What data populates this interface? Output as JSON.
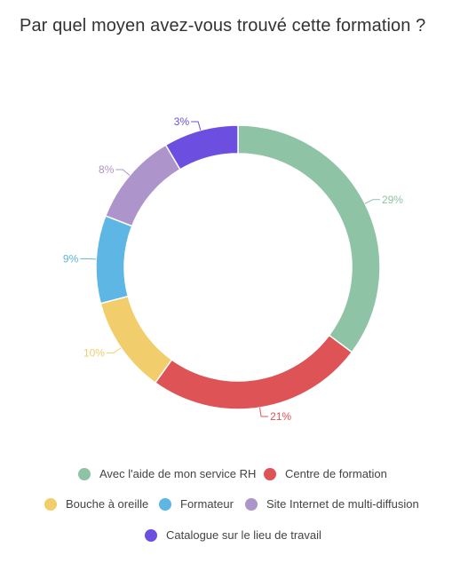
{
  "title": "Par quel moyen avez-vous trouvé cette formation ?",
  "chart_data": {
    "type": "pie",
    "title": "Par quel moyen avez-vous trouvé cette formation ?",
    "slices": [
      {
        "name": "Avec l'aide de mon service RH",
        "value": 29,
        "label": "29%",
        "color": "#8fc3a6"
      },
      {
        "name": "Centre de formation",
        "value": 21,
        "label": "21%",
        "color": "#de5356"
      },
      {
        "name": "Bouche à oreille",
        "value": 10,
        "label": "10%",
        "color": "#f1cd6b"
      },
      {
        "name": "Formateur",
        "value": 9,
        "label": "9%",
        "color": "#5db6e3"
      },
      {
        "name": "Site Internet de multi-diffusion",
        "value": 8,
        "label": "8%",
        "color": "#ad94ca"
      },
      {
        "name": "Catalogue sur le lieu de travail",
        "value": 3,
        "label": "3%",
        "color": "#6c4fe0"
      }
    ],
    "donut": true,
    "legend_position": "bottom"
  }
}
